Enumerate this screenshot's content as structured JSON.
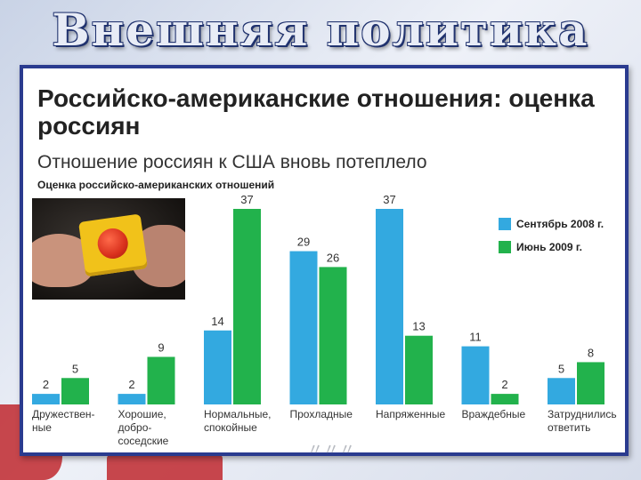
{
  "slide": {
    "title": "Внешняя политика"
  },
  "panel": {
    "headline": "Российско-американские отношения: оценка россиян",
    "subheadline": "Отношение россиян к США вновь потеплело",
    "chart_caption": "Оценка российско-американских отношений"
  },
  "colors": {
    "series_2008": "#33a9e0",
    "series_2009": "#22b24c",
    "frame": "#2a3b8f"
  },
  "chart_data": {
    "type": "bar",
    "title": "Оценка российско-американских отношений",
    "categories": [
      "Дружествен-\nные",
      "Хорошие,\nдобро-\nсоседские",
      "Нормальные,\nспокойные",
      "Прохладные",
      "Напряженные",
      "Враждебные",
      "Затруднились\nответить"
    ],
    "series": [
      {
        "name": "Сентябрь 2008 г.",
        "values": [
          2,
          2,
          14,
          29,
          37,
          11,
          5
        ]
      },
      {
        "name": "Июнь 2009 г.",
        "values": [
          5,
          9,
          37,
          26,
          13,
          2,
          8
        ]
      }
    ],
    "ylim": [
      0,
      37
    ],
    "grid": false,
    "legend": "top-right",
    "data_labels": true
  }
}
